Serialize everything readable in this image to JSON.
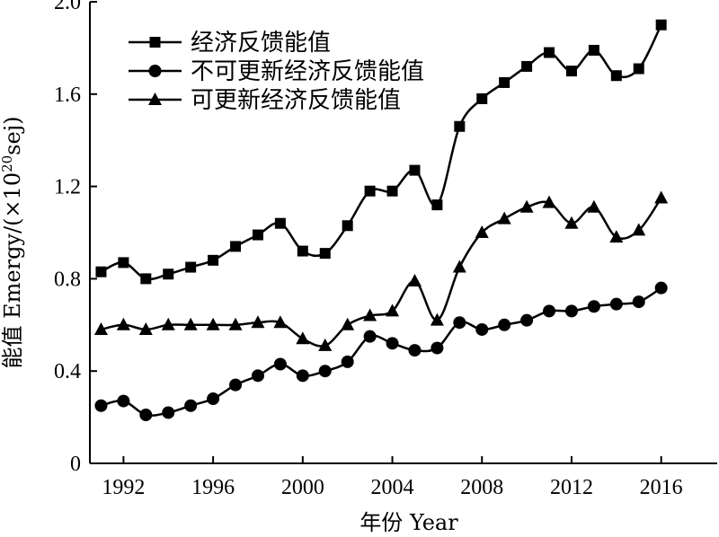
{
  "chart_data": {
    "type": "line",
    "xlabel": "年份 Year",
    "ylabel_prefix": "能值 Emergy/(×10",
    "ylabel_exp": "20",
    "ylabel_suffix": "sej)",
    "xlim": [
      1990.5,
      2018.5
    ],
    "ylim": [
      0,
      2.0
    ],
    "xticks": [
      1992,
      1996,
      2000,
      2004,
      2008,
      2012,
      2016
    ],
    "yticks": [
      0,
      0.4,
      0.8,
      1.2,
      1.6,
      2.0
    ],
    "ytick_labels": [
      "0",
      "0.4",
      "0.8",
      "1.2",
      "1.6",
      "2.0"
    ],
    "x": [
      1991,
      1992,
      1993,
      1994,
      1995,
      1996,
      1997,
      1998,
      1999,
      2000,
      2001,
      2002,
      2003,
      2004,
      2005,
      2006,
      2007,
      2008,
      2009,
      2010,
      2011,
      2012,
      2013,
      2014,
      2015,
      2016
    ],
    "series": [
      {
        "name": "经济反馈能值",
        "marker": "square",
        "values": [
          0.83,
          0.87,
          0.8,
          0.82,
          0.85,
          0.88,
          0.94,
          0.99,
          1.04,
          0.92,
          0.91,
          1.03,
          1.18,
          1.18,
          1.27,
          1.12,
          1.46,
          1.58,
          1.65,
          1.72,
          1.78,
          1.7,
          1.79,
          1.68,
          1.71,
          1.9
        ]
      },
      {
        "name": "不可更新经济反馈能值",
        "marker": "circle",
        "values": [
          0.25,
          0.27,
          0.21,
          0.22,
          0.25,
          0.28,
          0.34,
          0.38,
          0.43,
          0.38,
          0.4,
          0.44,
          0.55,
          0.52,
          0.49,
          0.5,
          0.61,
          0.58,
          0.6,
          0.62,
          0.66,
          0.66,
          0.68,
          0.69,
          0.7,
          0.76
        ]
      },
      {
        "name": "可更新经济反馈能值",
        "marker": "triangle",
        "values": [
          0.58,
          0.6,
          0.58,
          0.6,
          0.6,
          0.6,
          0.6,
          0.61,
          0.61,
          0.54,
          0.51,
          0.6,
          0.64,
          0.66,
          0.79,
          0.62,
          0.85,
          1.0,
          1.06,
          1.11,
          1.13,
          1.04,
          1.11,
          0.98,
          1.01,
          1.15
        ]
      }
    ],
    "legend_position": "top-left",
    "grid": false,
    "line_color": "#000000"
  }
}
